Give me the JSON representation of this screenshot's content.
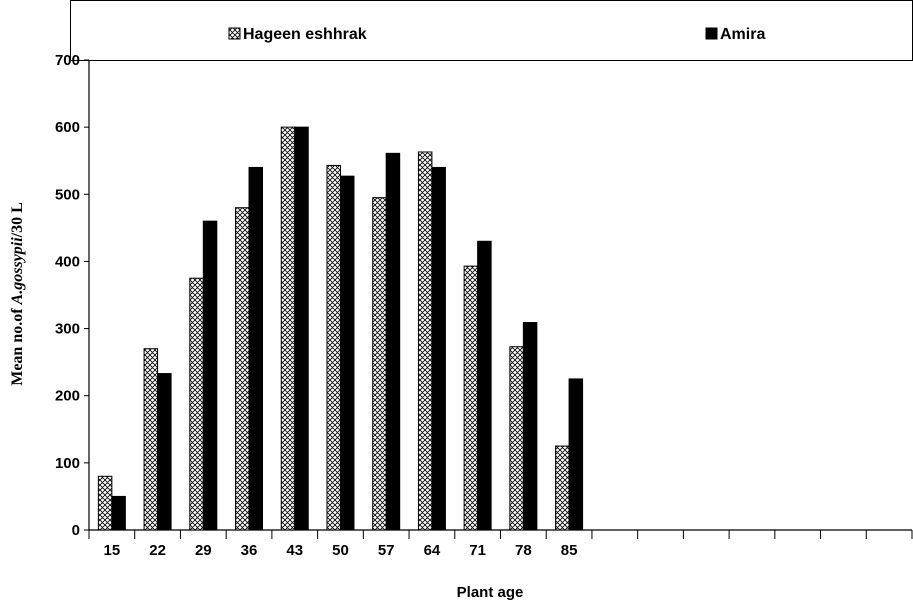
{
  "chart_data": {
    "type": "bar",
    "xlabel": "Plant age",
    "ylabel_prefix": "Mean no.of ",
    "ylabel_italic": "A.gossypii",
    "ylabel_suffix": "/30 L",
    "ylim": [
      0,
      700
    ],
    "yticks": [
      "0",
      "100",
      "200",
      "300",
      "400",
      "500",
      "600",
      "700"
    ],
    "categories": [
      "15",
      "22",
      "29",
      "36",
      "43",
      "50",
      "57",
      "64",
      "71",
      "78",
      "85"
    ],
    "empty_slots": 7,
    "legend_position": "top",
    "grid": false,
    "series": [
      {
        "name": "Hageen eshhrak",
        "pattern": "crosshatch",
        "color": "#000000",
        "values": [
          80,
          270,
          375,
          480,
          600,
          543,
          495,
          563,
          393,
          273,
          125
        ]
      },
      {
        "name": "Amira",
        "pattern": "solid",
        "color": "#000000",
        "values": [
          50,
          233,
          460,
          540,
          600,
          527,
          561,
          540,
          430,
          309,
          225
        ]
      }
    ]
  }
}
